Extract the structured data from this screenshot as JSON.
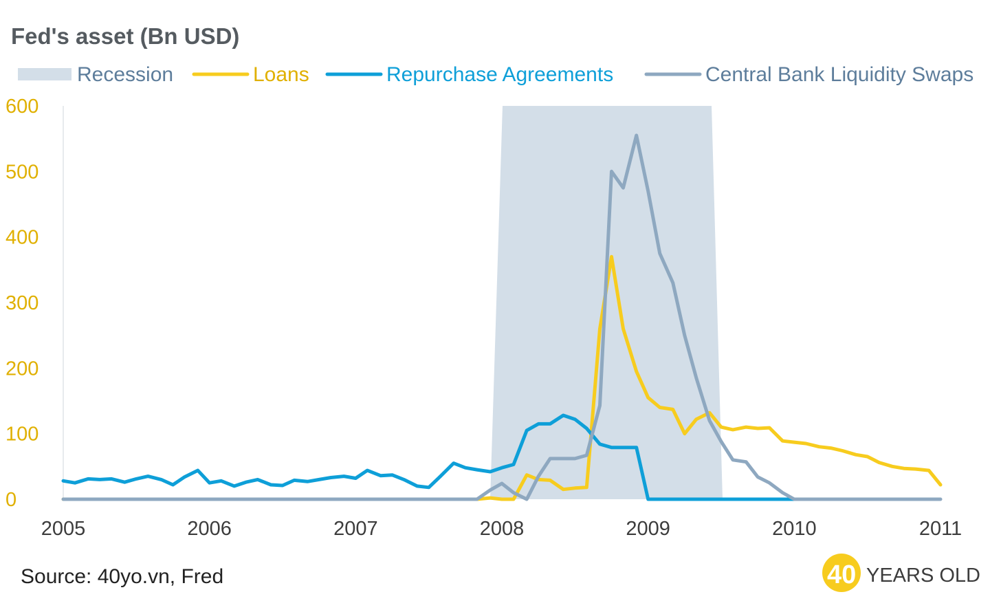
{
  "chart_data": {
    "type": "line",
    "title": "Fed's asset (Bn USD)",
    "xlabel": "",
    "ylabel": "",
    "xlim": [
      2005.0,
      2011.0
    ],
    "ylim": [
      0,
      600
    ],
    "y_ticks": [
      "0",
      "100",
      "200",
      "300",
      "400",
      "500",
      "600"
    ],
    "x_ticks": [
      "2005",
      "2006",
      "2007",
      "2008",
      "2009",
      "2010",
      "2011"
    ],
    "grid": false,
    "legend_position": "top",
    "recession": {
      "name": "Recession",
      "color": "#d3dee8",
      "start": 2007.92,
      "end": 2009.5
    },
    "series": [
      {
        "name": "Loans",
        "color": "#f7cc1e",
        "x": [
          2005.0,
          2005.5,
          2006.0,
          2006.5,
          2007.0,
          2007.5,
          2007.83,
          2007.92,
          2008.0,
          2008.08,
          2008.17,
          2008.25,
          2008.33,
          2008.42,
          2008.5,
          2008.58,
          2008.67,
          2008.75,
          2008.83,
          2008.92,
          2009.0,
          2009.08,
          2009.17,
          2009.25,
          2009.33,
          2009.42,
          2009.5,
          2009.58,
          2009.67,
          2009.75,
          2009.83,
          2009.92,
          2010.0,
          2010.08,
          2010.17,
          2010.25,
          2010.33,
          2010.42,
          2010.5,
          2010.58,
          2010.67,
          2010.75,
          2010.83,
          2010.92,
          2011.0
        ],
        "y": [
          0,
          0,
          0,
          0,
          0,
          0,
          0,
          2,
          0,
          0,
          37,
          30,
          29,
          15,
          17,
          18,
          260,
          370,
          260,
          195,
          155,
          140,
          137,
          100,
          122,
          132,
          110,
          106,
          110,
          108,
          109,
          89,
          87,
          85,
          80,
          78,
          74,
          68,
          65,
          56,
          50,
          47,
          46,
          44,
          22
        ]
      },
      {
        "name": "Repurchase Agreements",
        "color": "#0e9fd8",
        "x": [
          2005.0,
          2005.08,
          2005.17,
          2005.25,
          2005.33,
          2005.42,
          2005.5,
          2005.58,
          2005.67,
          2005.75,
          2005.83,
          2005.92,
          2006.0,
          2006.08,
          2006.17,
          2006.25,
          2006.33,
          2006.42,
          2006.5,
          2006.58,
          2006.67,
          2006.75,
          2006.83,
          2006.92,
          2007.0,
          2007.08,
          2007.17,
          2007.25,
          2007.33,
          2007.42,
          2007.5,
          2007.58,
          2007.67,
          2007.75,
          2007.83,
          2007.92,
          2008.0,
          2008.08,
          2008.17,
          2008.25,
          2008.33,
          2008.42,
          2008.5,
          2008.58,
          2008.67,
          2008.75,
          2008.83,
          2008.92,
          2009.0,
          2009.5,
          2010.0
        ],
        "y": [
          28,
          25,
          31,
          30,
          31,
          26,
          31,
          35,
          30,
          22,
          34,
          44,
          25,
          28,
          20,
          26,
          30,
          22,
          21,
          29,
          27,
          30,
          33,
          35,
          32,
          44,
          36,
          37,
          30,
          20,
          18,
          35,
          55,
          48,
          45,
          42,
          48,
          53,
          105,
          115,
          115,
          128,
          122,
          108,
          84,
          79,
          79,
          79,
          0,
          0,
          0
        ]
      },
      {
        "name": "Central Bank Liquidity Swaps",
        "color": "#8ea8c0",
        "x": [
          2005.0,
          2005.5,
          2006.0,
          2006.5,
          2007.0,
          2007.5,
          2007.83,
          2007.92,
          2008.0,
          2008.08,
          2008.17,
          2008.25,
          2008.33,
          2008.42,
          2008.5,
          2008.58,
          2008.67,
          2008.75,
          2008.83,
          2008.92,
          2009.0,
          2009.08,
          2009.17,
          2009.25,
          2009.33,
          2009.42,
          2009.5,
          2009.58,
          2009.67,
          2009.75,
          2009.83,
          2009.92,
          2010.0,
          2010.5,
          2011.0
        ],
        "y": [
          0,
          0,
          0,
          0,
          0,
          0,
          0,
          14,
          24,
          10,
          0,
          35,
          62,
          62,
          62,
          67,
          143,
          500,
          475,
          555,
          470,
          375,
          330,
          250,
          185,
          120,
          88,
          60,
          57,
          34,
          25,
          10,
          0,
          0,
          0
        ]
      }
    ]
  },
  "legend": [
    {
      "label": "Recession",
      "color": "#d3dee8",
      "text_color": "#5d7d9b",
      "kind": "band"
    },
    {
      "label": "Loans",
      "color": "#f7cc1e",
      "text_color": "#e0b000",
      "kind": "line"
    },
    {
      "label": "Repurchase Agreements",
      "color": "#0e9fd8",
      "text_color": "#0e9fd8",
      "kind": "line"
    },
    {
      "label": "Central Bank Liquidity Swaps",
      "color": "#8ea8c0",
      "text_color": "#5d7d9b",
      "kind": "line"
    }
  ],
  "source": "Source: 40yo.vn, Fred",
  "logo": {
    "number": "40",
    "text": "YEARS OLD",
    "color": "#f7cc1e"
  }
}
